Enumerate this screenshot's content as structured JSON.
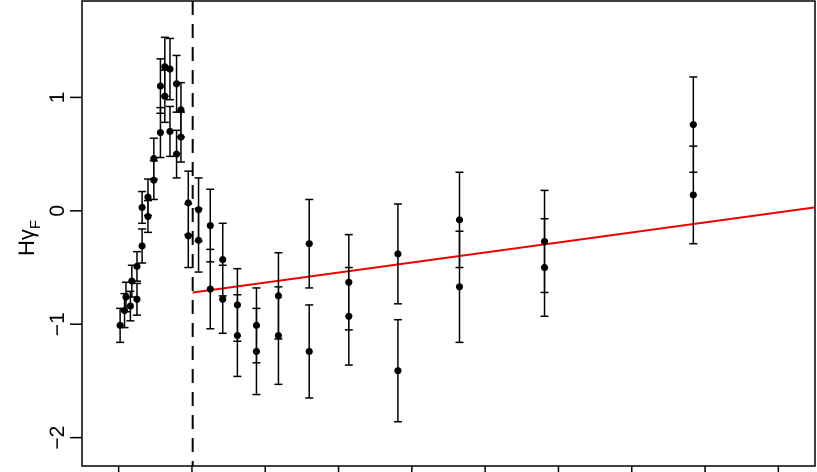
{
  "chart_data": {
    "type": "scatter",
    "title": "",
    "xlabel": "",
    "ylabel": {
      "main": "Hγ",
      "sub": "F"
    },
    "xlim": [
      0.5,
      10.5
    ],
    "ylim": [
      -2.25,
      1.85
    ],
    "yticks": [
      -2,
      -1,
      0,
      1
    ],
    "ytick_labels": [
      "−2",
      "−1",
      "0",
      "1"
    ],
    "xticks": [
      1,
      2,
      3,
      4,
      5,
      6,
      7,
      8,
      9,
      10
    ],
    "grid": false,
    "legend": "none",
    "vline": {
      "x": 2.01,
      "style": "dashed",
      "color": "#000000"
    },
    "fit_line": {
      "x": [
        2.01,
        10.5
      ],
      "y": [
        -0.72,
        0.03
      ],
      "color": "#ee0000"
    },
    "points": [
      {
        "x": 1.02,
        "y": -1.01,
        "err": 0.15
      },
      {
        "x": 1.08,
        "y": -0.88,
        "err": 0.15
      },
      {
        "x": 1.1,
        "y": -0.76,
        "err": 0.13
      },
      {
        "x": 1.16,
        "y": -0.84,
        "err": 0.13
      },
      {
        "x": 1.18,
        "y": -0.62,
        "err": 0.14
      },
      {
        "x": 1.25,
        "y": -0.78,
        "err": 0.14
      },
      {
        "x": 1.25,
        "y": -0.49,
        "err": 0.13
      },
      {
        "x": 1.32,
        "y": -0.31,
        "err": 0.15
      },
      {
        "x": 1.32,
        "y": 0.03,
        "err": 0.14
      },
      {
        "x": 1.4,
        "y": 0.12,
        "err": 0.16
      },
      {
        "x": 1.4,
        "y": -0.05,
        "err": 0.14
      },
      {
        "x": 1.48,
        "y": 0.46,
        "err": 0.18
      },
      {
        "x": 1.48,
        "y": 0.27,
        "err": 0.17
      },
      {
        "x": 1.57,
        "y": 1.1,
        "err": 0.24
      },
      {
        "x": 1.57,
        "y": 0.69,
        "err": 0.22
      },
      {
        "x": 1.63,
        "y": 1.27,
        "err": 0.26
      },
      {
        "x": 1.63,
        "y": 1.01,
        "err": 0.23
      },
      {
        "x": 1.7,
        "y": 1.25,
        "err": 0.27
      },
      {
        "x": 1.7,
        "y": 0.7,
        "err": 0.22
      },
      {
        "x": 1.79,
        "y": 1.12,
        "err": 0.25
      },
      {
        "x": 1.79,
        "y": 0.5,
        "err": 0.21
      },
      {
        "x": 1.85,
        "y": 0.89,
        "err": 0.24
      },
      {
        "x": 1.85,
        "y": 0.65,
        "err": 0.22
      },
      {
        "x": 1.95,
        "y": 0.07,
        "err": 0.28
      },
      {
        "x": 1.95,
        "y": -0.22,
        "err": 0.28
      },
      {
        "x": 2.09,
        "y": 0.01,
        "err": 0.28
      },
      {
        "x": 2.09,
        "y": -0.26,
        "err": 0.28
      },
      {
        "x": 2.25,
        "y": -0.13,
        "err": 0.32
      },
      {
        "x": 2.25,
        "y": -0.69,
        "err": 0.35
      },
      {
        "x": 2.42,
        "y": -0.43,
        "err": 0.32
      },
      {
        "x": 2.42,
        "y": -0.78,
        "err": 0.3
      },
      {
        "x": 2.62,
        "y": -0.83,
        "err": 0.32
      },
      {
        "x": 2.62,
        "y": -1.1,
        "err": 0.36
      },
      {
        "x": 2.88,
        "y": -1.01,
        "err": 0.33
      },
      {
        "x": 2.88,
        "y": -1.24,
        "err": 0.38
      },
      {
        "x": 3.18,
        "y": -0.75,
        "err": 0.38
      },
      {
        "x": 3.18,
        "y": -1.1,
        "err": 0.43
      },
      {
        "x": 3.6,
        "y": -0.29,
        "err": 0.39
      },
      {
        "x": 3.6,
        "y": -1.24,
        "err": 0.41
      },
      {
        "x": 4.14,
        "y": -0.63,
        "err": 0.42
      },
      {
        "x": 4.14,
        "y": -0.93,
        "err": 0.43
      },
      {
        "x": 4.81,
        "y": -0.38,
        "err": 0.44
      },
      {
        "x": 4.81,
        "y": -1.41,
        "err": 0.45
      },
      {
        "x": 5.65,
        "y": -0.08,
        "err": 0.42
      },
      {
        "x": 5.65,
        "y": -0.67,
        "err": 0.49
      },
      {
        "x": 6.81,
        "y": -0.27,
        "err": 0.45
      },
      {
        "x": 6.81,
        "y": -0.5,
        "err": 0.43
      },
      {
        "x": 8.84,
        "y": 0.76,
        "err": 0.42
      },
      {
        "x": 8.84,
        "y": 0.14,
        "err": 0.43
      }
    ]
  }
}
